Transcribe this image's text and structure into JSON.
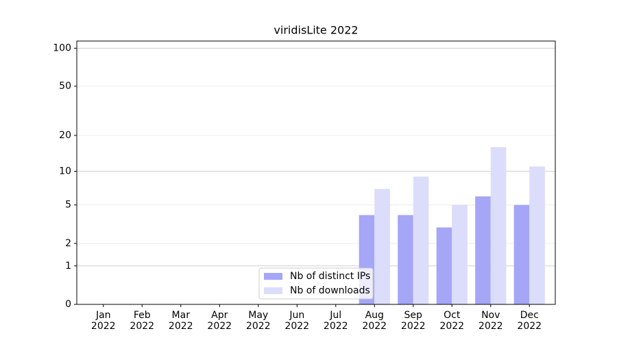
{
  "chart_data": {
    "type": "bar",
    "title": "viridisLite 2022",
    "categories": [
      "Jan 2022",
      "Feb 2022",
      "Mar 2022",
      "Apr 2022",
      "May 2022",
      "Jun 2022",
      "Jul 2022",
      "Aug 2022",
      "Sep 2022",
      "Oct 2022",
      "Nov 2022",
      "Dec 2022"
    ],
    "series": [
      {
        "name": "Nb of distinct IPs",
        "color": "#a6a6f6",
        "values": [
          0,
          0,
          0,
          0,
          0,
          0,
          0,
          4,
          4,
          3,
          6,
          5
        ]
      },
      {
        "name": "Nb of downloads",
        "color": "#dcdcfb",
        "values": [
          0,
          0,
          0,
          0,
          0,
          0,
          0,
          7,
          9,
          5,
          16,
          11
        ]
      }
    ],
    "yscale": "log1p",
    "ylim": [
      0,
      114
    ],
    "yticks": [
      0,
      1,
      2,
      5,
      10,
      20,
      50,
      100
    ],
    "grid": true,
    "legend": "lower center"
  }
}
